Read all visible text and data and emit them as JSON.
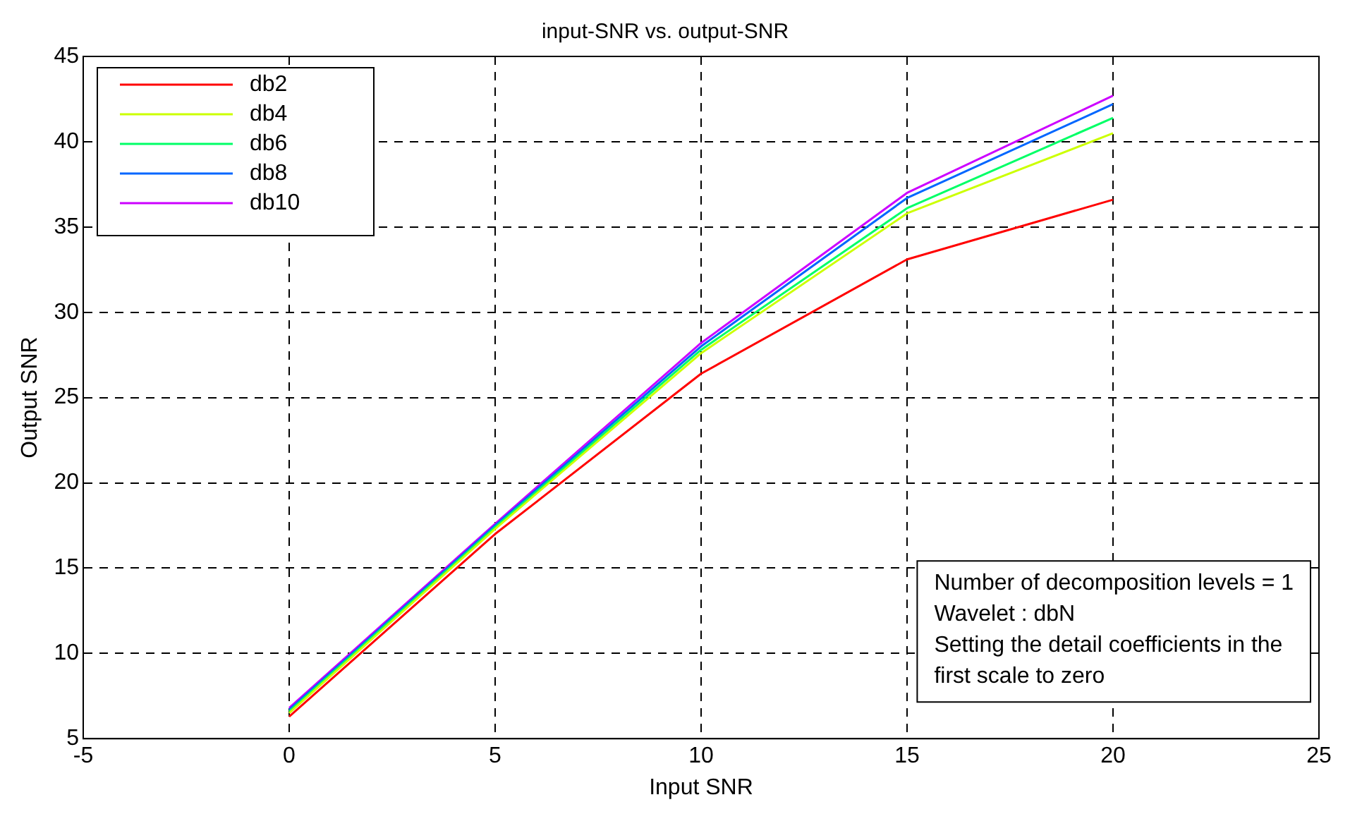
{
  "chart_data": {
    "type": "line",
    "title": "input-SNR vs. output-SNR",
    "xlabel": "Input SNR",
    "ylabel": "Output SNR",
    "x": [
      0,
      5,
      10,
      15,
      20
    ],
    "series": [
      {
        "name": "db2",
        "color": "#ff0000",
        "values": [
          6.3,
          17.0,
          26.4,
          33.1,
          36.6
        ]
      },
      {
        "name": "db4",
        "color": "#ccff00",
        "values": [
          6.5,
          17.3,
          27.6,
          35.8,
          40.5
        ]
      },
      {
        "name": "db6",
        "color": "#00ff66",
        "values": [
          6.6,
          17.4,
          27.8,
          36.1,
          41.4
        ]
      },
      {
        "name": "db8",
        "color": "#0066ff",
        "values": [
          6.7,
          17.5,
          28.0,
          36.7,
          42.2
        ]
      },
      {
        "name": "db10",
        "color": "#cc00ff",
        "values": [
          6.8,
          17.6,
          28.2,
          37.0,
          42.7
        ]
      }
    ],
    "xlim": [
      -5,
      25
    ],
    "xticks": [
      -5,
      0,
      5,
      10,
      15,
      20,
      25
    ],
    "ylim": [
      5,
      45
    ],
    "yticks": [
      5,
      10,
      15,
      20,
      25,
      30,
      35,
      40,
      45
    ],
    "grid": true,
    "legend": "top left",
    "marker": "none",
    "line_style": "solid",
    "annotations": [
      "Number of decomposition levels = 1",
      "Wavelet : dbN",
      "Setting the detail coefficients in the",
      "first scale to zero"
    ]
  }
}
